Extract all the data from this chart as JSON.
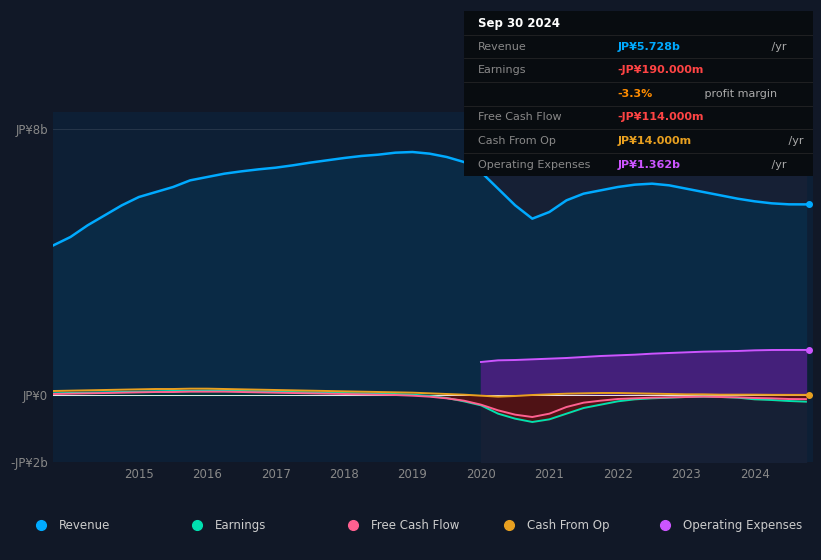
{
  "background_color": "#111827",
  "plot_bg_color": "#0d1f35",
  "years": [
    2013.75,
    2014.0,
    2014.25,
    2014.5,
    2014.75,
    2015.0,
    2015.25,
    2015.5,
    2015.75,
    2016.0,
    2016.25,
    2016.5,
    2016.75,
    2017.0,
    2017.25,
    2017.5,
    2017.75,
    2018.0,
    2018.25,
    2018.5,
    2018.75,
    2019.0,
    2019.25,
    2019.5,
    2019.75,
    2020.0,
    2020.25,
    2020.5,
    2020.75,
    2021.0,
    2021.25,
    2021.5,
    2021.75,
    2022.0,
    2022.25,
    2022.5,
    2022.75,
    2023.0,
    2023.25,
    2023.5,
    2023.75,
    2024.0,
    2024.25,
    2024.5,
    2024.75
  ],
  "revenue": [
    4.5,
    4.75,
    5.1,
    5.4,
    5.7,
    5.95,
    6.1,
    6.25,
    6.45,
    6.55,
    6.65,
    6.72,
    6.78,
    6.83,
    6.9,
    6.98,
    7.05,
    7.12,
    7.18,
    7.22,
    7.28,
    7.3,
    7.25,
    7.15,
    7.0,
    6.7,
    6.2,
    5.7,
    5.3,
    5.5,
    5.85,
    6.05,
    6.15,
    6.25,
    6.32,
    6.35,
    6.3,
    6.2,
    6.1,
    6.0,
    5.9,
    5.82,
    5.76,
    5.73,
    5.728
  ],
  "earnings": [
    0.06,
    0.07,
    0.08,
    0.09,
    0.1,
    0.11,
    0.12,
    0.13,
    0.13,
    0.14,
    0.14,
    0.13,
    0.12,
    0.11,
    0.1,
    0.09,
    0.08,
    0.07,
    0.06,
    0.05,
    0.04,
    0.02,
    -0.02,
    -0.08,
    -0.18,
    -0.3,
    -0.55,
    -0.7,
    -0.8,
    -0.72,
    -0.55,
    -0.38,
    -0.28,
    -0.18,
    -0.12,
    -0.09,
    -0.07,
    -0.05,
    -0.04,
    -0.05,
    -0.07,
    -0.12,
    -0.14,
    -0.17,
    -0.19
  ],
  "free_cash_flow": [
    0.04,
    0.05,
    0.06,
    0.07,
    0.08,
    0.09,
    0.1,
    0.1,
    0.11,
    0.11,
    0.11,
    0.1,
    0.09,
    0.08,
    0.07,
    0.06,
    0.05,
    0.04,
    0.03,
    0.02,
    0.01,
    -0.01,
    -0.04,
    -0.09,
    -0.16,
    -0.28,
    -0.45,
    -0.58,
    -0.65,
    -0.55,
    -0.35,
    -0.22,
    -0.16,
    -0.11,
    -0.09,
    -0.07,
    -0.06,
    -0.05,
    -0.04,
    -0.05,
    -0.06,
    -0.08,
    -0.09,
    -0.11,
    -0.114
  ],
  "cash_from_op": [
    0.13,
    0.14,
    0.15,
    0.16,
    0.17,
    0.18,
    0.19,
    0.19,
    0.2,
    0.2,
    0.19,
    0.18,
    0.17,
    0.16,
    0.15,
    0.14,
    0.13,
    0.12,
    0.11,
    0.1,
    0.09,
    0.08,
    0.06,
    0.04,
    0.02,
    -0.01,
    -0.04,
    -0.02,
    0.01,
    0.03,
    0.05,
    0.06,
    0.07,
    0.07,
    0.06,
    0.05,
    0.04,
    0.03,
    0.03,
    0.02,
    0.02,
    0.02,
    0.015,
    0.014,
    0.014
  ],
  "op_expenses": [
    null,
    null,
    null,
    null,
    null,
    null,
    null,
    null,
    null,
    null,
    null,
    null,
    null,
    null,
    null,
    null,
    null,
    null,
    null,
    null,
    null,
    null,
    null,
    null,
    null,
    1.0,
    1.05,
    1.06,
    1.08,
    1.1,
    1.12,
    1.15,
    1.18,
    1.2,
    1.22,
    1.25,
    1.27,
    1.29,
    1.31,
    1.32,
    1.33,
    1.35,
    1.36,
    1.362,
    1.362
  ],
  "revenue_color": "#00aaff",
  "earnings_color": "#00e0b0",
  "free_cash_flow_color": "#ff6090",
  "cash_from_op_color": "#e8a020",
  "op_expenses_color": "#cc55ff",
  "revenue_fill_color": "#0a2a45",
  "op_expenses_fill_color": "#44207a",
  "earnings_neg_fill_color": "#5a1010",
  "highlight_bg_color": "#162035",
  "ylim": [
    -2.0,
    8.5
  ],
  "xlim": [
    2013.75,
    2024.85
  ],
  "yticks": [
    -2,
    0,
    8
  ],
  "ytick_labels": [
    "-JP¥2b",
    "JP¥0",
    "JP¥8b"
  ],
  "xticks": [
    2015,
    2016,
    2017,
    2018,
    2019,
    2020,
    2021,
    2022,
    2023,
    2024
  ],
  "highlight_start": 2020.0,
  "table_rows": [
    {
      "label": "Sep 30 2024",
      "value": "",
      "suffix": "",
      "is_header": true,
      "label_color": "#ffffff",
      "value_color": null
    },
    {
      "label": "Revenue",
      "value": "JP¥5.728b",
      "suffix": " /yr",
      "is_header": false,
      "label_color": "#888888",
      "value_color": "#00aaff"
    },
    {
      "label": "Earnings",
      "value": "-JP¥190.000m",
      "suffix": " /yr",
      "is_header": false,
      "label_color": "#888888",
      "value_color": "#ff4444"
    },
    {
      "label": "",
      "value": "-3.3%",
      "suffix": " profit margin",
      "is_header": false,
      "label_color": "#888888",
      "value_color": "#ff8c00"
    },
    {
      "label": "Free Cash Flow",
      "value": "-JP¥114.000m",
      "suffix": " /yr",
      "is_header": false,
      "label_color": "#888888",
      "value_color": "#ff4444"
    },
    {
      "label": "Cash From Op",
      "value": "JP¥14.000m",
      "suffix": " /yr",
      "is_header": false,
      "label_color": "#888888",
      "value_color": "#e8a020"
    },
    {
      "label": "Operating Expenses",
      "value": "JP¥1.362b",
      "suffix": " /yr",
      "is_header": false,
      "label_color": "#888888",
      "value_color": "#cc55ff"
    }
  ],
  "legend_items": [
    {
      "label": "Revenue",
      "color": "#00aaff"
    },
    {
      "label": "Earnings",
      "color": "#00e0b0"
    },
    {
      "label": "Free Cash Flow",
      "color": "#ff6090"
    },
    {
      "label": "Cash From Op",
      "color": "#e8a020"
    },
    {
      "label": "Operating Expenses",
      "color": "#cc55ff"
    }
  ]
}
